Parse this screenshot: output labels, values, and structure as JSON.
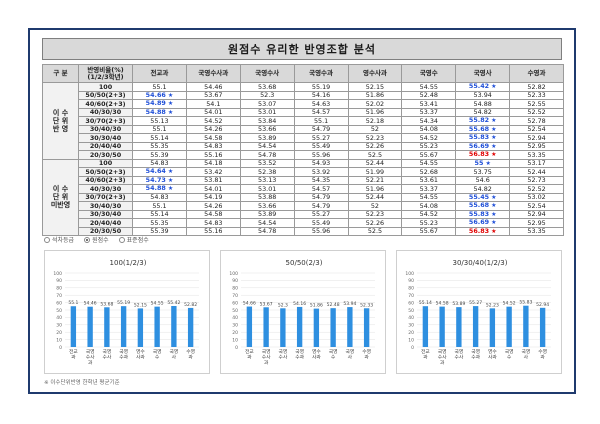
{
  "title": "원점수 유리한 반영조합 분석",
  "table": {
    "headers": {
      "group": "구  분",
      "ratio": "반영비율(%)\n(1/2/3학년)",
      "columns": [
        "전교과",
        "국영수사과",
        "국영수사",
        "국영수과",
        "영수사과",
        "국영수",
        "국영사",
        "수영과"
      ]
    },
    "groups": [
      {
        "label": "이 수\n단 위\n반 영",
        "rows": [
          {
            "ratio": "100",
            "cells": [
              [
                "55.1",
                ""
              ],
              [
                "54.46",
                ""
              ],
              [
                "53.68",
                ""
              ],
              [
                "55.19",
                ""
              ],
              [
                "52.15",
                ""
              ],
              [
                "54.55",
                ""
              ],
              [
                "55.42",
                "blue"
              ],
              [
                "52.82",
                ""
              ]
            ]
          },
          {
            "ratio": "50/50(2+3)",
            "cells": [
              [
                "54.66",
                "blue"
              ],
              [
                "53.67",
                ""
              ],
              [
                "52.3",
                ""
              ],
              [
                "54.16",
                ""
              ],
              [
                "51.86",
                ""
              ],
              [
                "52.48",
                ""
              ],
              [
                "53.94",
                ""
              ],
              [
                "52.33",
                ""
              ]
            ]
          },
          {
            "ratio": "40/60(2+3)",
            "cells": [
              [
                "54.89",
                "blue"
              ],
              [
                "54.1",
                ""
              ],
              [
                "53.07",
                ""
              ],
              [
                "54.63",
                ""
              ],
              [
                "52.02",
                ""
              ],
              [
                "53.41",
                ""
              ],
              [
                "54.88",
                ""
              ],
              [
                "52.55",
                ""
              ]
            ]
          },
          {
            "ratio": "40/30/30",
            "cells": [
              [
                "54.88",
                "blue"
              ],
              [
                "54.01",
                ""
              ],
              [
                "53.01",
                ""
              ],
              [
                "54.57",
                ""
              ],
              [
                "51.96",
                ""
              ],
              [
                "53.37",
                ""
              ],
              [
                "54.82",
                ""
              ],
              [
                "52.52",
                ""
              ]
            ]
          },
          {
            "ratio": "30/70(2+3)",
            "cells": [
              [
                "55.13",
                ""
              ],
              [
                "54.52",
                ""
              ],
              [
                "53.84",
                ""
              ],
              [
                "55.1",
                ""
              ],
              [
                "52.18",
                ""
              ],
              [
                "54.34",
                ""
              ],
              [
                "55.82",
                "blue"
              ],
              [
                "52.78",
                ""
              ]
            ]
          },
          {
            "ratio": "30/40/30",
            "cells": [
              [
                "55.1",
                ""
              ],
              [
                "54.26",
                ""
              ],
              [
                "53.66",
                ""
              ],
              [
                "54.79",
                ""
              ],
              [
                "52",
                ""
              ],
              [
                "54.08",
                ""
              ],
              [
                "55.68",
                "blue"
              ],
              [
                "52.54",
                ""
              ]
            ]
          },
          {
            "ratio": "30/30/40",
            "cells": [
              [
                "55.14",
                ""
              ],
              [
                "54.58",
                ""
              ],
              [
                "53.89",
                ""
              ],
              [
                "55.27",
                ""
              ],
              [
                "52.23",
                ""
              ],
              [
                "54.52",
                ""
              ],
              [
                "55.83",
                "blue"
              ],
              [
                "52.94",
                ""
              ]
            ]
          },
          {
            "ratio": "20/40/40",
            "cells": [
              [
                "55.35",
                ""
              ],
              [
                "54.83",
                ""
              ],
              [
                "54.54",
                ""
              ],
              [
                "55.49",
                ""
              ],
              [
                "52.26",
                ""
              ],
              [
                "55.23",
                ""
              ],
              [
                "56.69",
                "blue"
              ],
              [
                "52.95",
                ""
              ]
            ]
          },
          {
            "ratio": "20/30/50",
            "cells": [
              [
                "55.39",
                ""
              ],
              [
                "55.16",
                ""
              ],
              [
                "54.78",
                ""
              ],
              [
                "55.96",
                ""
              ],
              [
                "52.5",
                ""
              ],
              [
                "55.67",
                ""
              ],
              [
                "56.83",
                "red"
              ],
              [
                "53.35",
                ""
              ]
            ]
          }
        ]
      },
      {
        "label": "이 수\n단 위\n미반영",
        "rows": [
          {
            "ratio": "100",
            "cells": [
              [
                "54.83",
                ""
              ],
              [
                "54.18",
                ""
              ],
              [
                "53.52",
                ""
              ],
              [
                "54.93",
                ""
              ],
              [
                "52.44",
                ""
              ],
              [
                "54.55",
                ""
              ],
              [
                "55",
                "blue"
              ],
              [
                "53.17",
                ""
              ]
            ]
          },
          {
            "ratio": "50/50(2+3)",
            "cells": [
              [
                "54.64",
                "blue"
              ],
              [
                "53.42",
                ""
              ],
              [
                "52.38",
                ""
              ],
              [
                "53.92",
                ""
              ],
              [
                "51.99",
                ""
              ],
              [
                "52.68",
                ""
              ],
              [
                "53.75",
                ""
              ],
              [
                "52.44",
                ""
              ]
            ]
          },
          {
            "ratio": "40/60(2+3)",
            "cells": [
              [
                "54.73",
                "blue"
              ],
              [
                "53.81",
                ""
              ],
              [
                "53.13",
                ""
              ],
              [
                "54.35",
                ""
              ],
              [
                "52.21",
                ""
              ],
              [
                "53.61",
                ""
              ],
              [
                "54.6",
                ""
              ],
              [
                "52.73",
                ""
              ]
            ]
          },
          {
            "ratio": "40/30/30",
            "cells": [
              [
                "54.88",
                "blue"
              ],
              [
                "54.01",
                ""
              ],
              [
                "53.01",
                ""
              ],
              [
                "54.57",
                ""
              ],
              [
                "51.96",
                ""
              ],
              [
                "53.37",
                ""
              ],
              [
                "54.82",
                ""
              ],
              [
                "52.52",
                ""
              ]
            ]
          },
          {
            "ratio": "30/70(2+3)",
            "cells": [
              [
                "54.83",
                ""
              ],
              [
                "54.19",
                ""
              ],
              [
                "53.88",
                ""
              ],
              [
                "54.79",
                ""
              ],
              [
                "52.44",
                ""
              ],
              [
                "54.55",
                ""
              ],
              [
                "55.45",
                "blue"
              ],
              [
                "53.02",
                ""
              ]
            ]
          },
          {
            "ratio": "30/40/30",
            "cells": [
              [
                "55.1",
                ""
              ],
              [
                "54.26",
                ""
              ],
              [
                "53.66",
                ""
              ],
              [
                "54.79",
                ""
              ],
              [
                "52",
                ""
              ],
              [
                "54.08",
                ""
              ],
              [
                "55.68",
                "blue"
              ],
              [
                "52.54",
                ""
              ]
            ]
          },
          {
            "ratio": "30/30/40",
            "cells": [
              [
                "55.14",
                ""
              ],
              [
                "54.58",
                ""
              ],
              [
                "53.89",
                ""
              ],
              [
                "55.27",
                ""
              ],
              [
                "52.23",
                ""
              ],
              [
                "54.52",
                ""
              ],
              [
                "55.83",
                "blue"
              ],
              [
                "52.94",
                ""
              ]
            ]
          },
          {
            "ratio": "20/40/40",
            "cells": [
              [
                "55.35",
                ""
              ],
              [
                "54.83",
                ""
              ],
              [
                "54.54",
                ""
              ],
              [
                "55.49",
                ""
              ],
              [
                "52.26",
                ""
              ],
              [
                "55.23",
                ""
              ],
              [
                "56.69",
                "blue"
              ],
              [
                "52.95",
                ""
              ]
            ]
          },
          {
            "ratio": "20/30/50",
            "cells": [
              [
                "55.39",
                ""
              ],
              [
                "55.16",
                ""
              ],
              [
                "54.78",
                ""
              ],
              [
                "55.96",
                ""
              ],
              [
                "52.5",
                ""
              ],
              [
                "55.67",
                ""
              ],
              [
                "56.83",
                "red"
              ],
              [
                "53.35",
                ""
              ]
            ]
          }
        ]
      }
    ],
    "star_symbol": "★",
    "colors": {
      "blue": "#1f4fd8",
      "red": "#e00000",
      "header_bg": "#d9d9d9"
    }
  },
  "radio_options": [
    {
      "label": "석차등급",
      "selected": false
    },
    {
      "label": "원점수",
      "selected": true
    },
    {
      "label": "표준점수",
      "selected": false
    }
  ],
  "chart_data": [
    {
      "type": "bar",
      "title": "100(1/2/3)",
      "categories": [
        "전교과",
        "국영수사과",
        "국영수사",
        "국영수과",
        "영수사과",
        "국영수",
        "국영사",
        "수영과"
      ],
      "values": [
        55.1,
        54.46,
        53.68,
        55.19,
        52.15,
        54.55,
        55.42,
        52.82
      ],
      "ylim": [
        0,
        100
      ],
      "yticks": [
        0,
        10,
        20,
        30,
        40,
        50,
        60,
        70,
        80,
        90,
        100
      ],
      "bar_color": "#2e8fe0"
    },
    {
      "type": "bar",
      "title": "50/50(2/3)",
      "categories": [
        "전교과",
        "국영수사과",
        "국영수사",
        "국영수과",
        "영수사과",
        "국영수",
        "국영사",
        "수영과"
      ],
      "values": [
        54.66,
        53.67,
        52.3,
        54.16,
        51.86,
        52.48,
        53.94,
        52.33
      ],
      "ylim": [
        0,
        100
      ],
      "yticks": [
        0,
        10,
        20,
        30,
        40,
        50,
        60,
        70,
        80,
        90,
        100
      ],
      "bar_color": "#2e8fe0"
    },
    {
      "type": "bar",
      "title": "30/30/40(1/2/3)",
      "categories": [
        "전교과",
        "국영수사과",
        "국영수사",
        "국영수과",
        "영수사과",
        "국영수",
        "국영사",
        "수영과"
      ],
      "values": [
        55.14,
        54.58,
        53.89,
        55.27,
        52.23,
        54.52,
        55.83,
        52.94
      ],
      "ylim": [
        0,
        100
      ],
      "yticks": [
        0,
        10,
        20,
        30,
        40,
        50,
        60,
        70,
        80,
        90,
        100
      ],
      "bar_color": "#2e8fe0"
    }
  ],
  "note": "※ 이수단위반영 한학년 평균기준"
}
